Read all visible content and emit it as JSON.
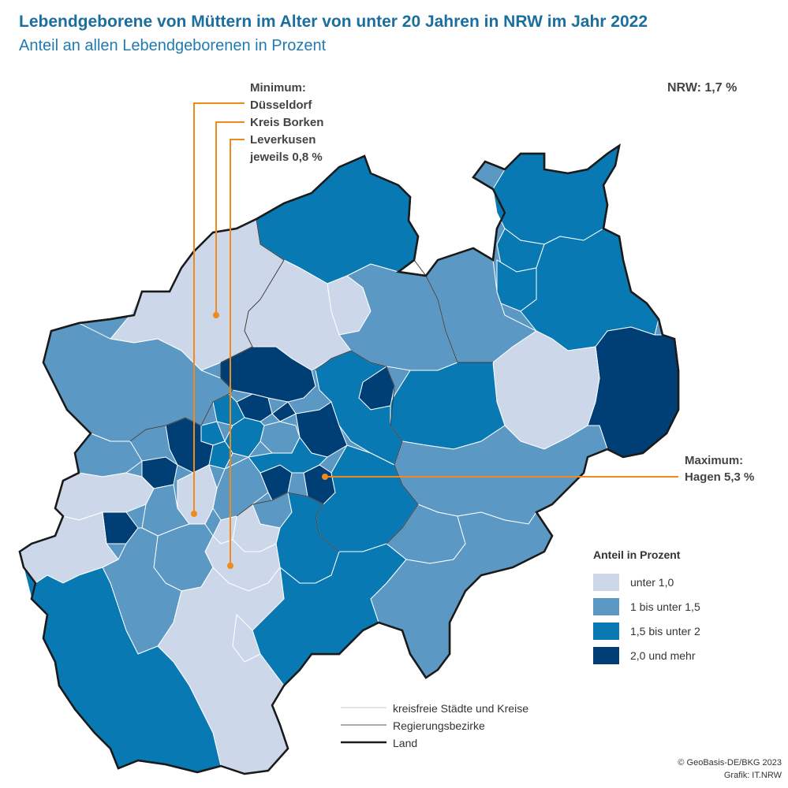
{
  "title": "Lebendgeborene von Müttern im Alter von unter 20 Jahren in NRW im Jahr 2022",
  "subtitle": "Anteil an allen Lebendgeborenen in Prozent",
  "nrw_value": "NRW: 1,7 %",
  "minimum": {
    "line1": "Minimum:",
    "line2": "Düsseldorf",
    "line3": "Kreis Borken",
    "line4": "Leverkusen",
    "line5": "jeweils 0,8 %"
  },
  "maximum": {
    "line1": "Maximum:",
    "line2": "Hagen 5,3 %"
  },
  "legend": {
    "title": "Anteil in Prozent",
    "classes": [
      {
        "label": "unter 1,0",
        "color": "#ccd8ea"
      },
      {
        "label": "1 bis unter 1,5",
        "color": "#5b99c4"
      },
      {
        "label": "1,5 bis unter 2",
        "color": "#0879b3"
      },
      {
        "label": "2,0 und mehr",
        "color": "#003f75"
      }
    ]
  },
  "boundaries": [
    {
      "label": "kreisfreie Städte und Kreise"
    },
    {
      "label": "Regierungsbezirke"
    },
    {
      "label": "Land"
    }
  ],
  "callout_color": "#f08a1c",
  "credits": {
    "line1": "© GeoBasis-DE/BKG 2023",
    "line2": "Grafik: IT.NRW"
  }
}
